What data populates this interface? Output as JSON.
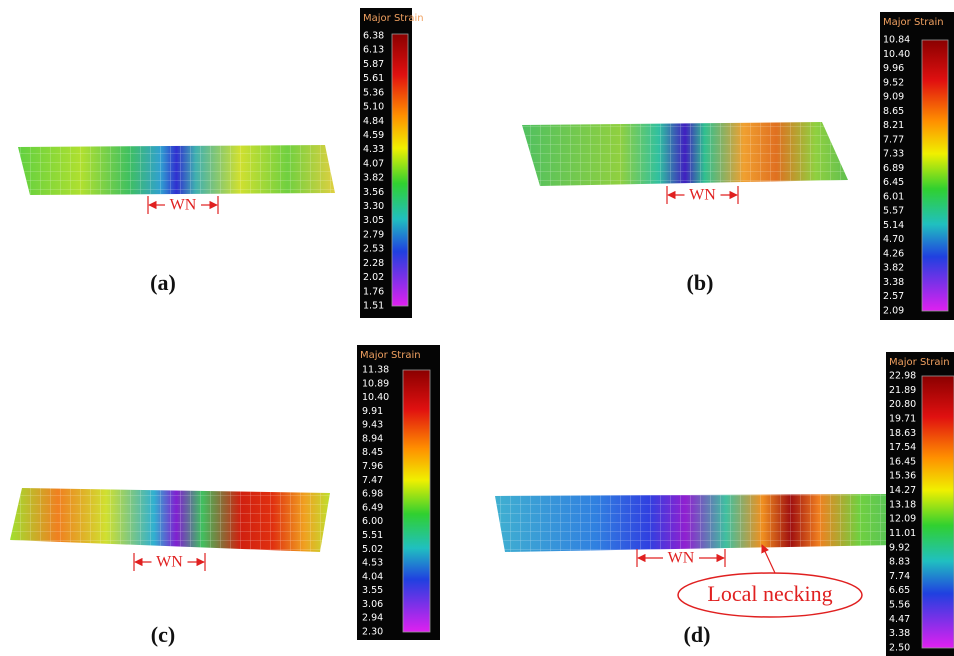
{
  "panels": [
    {
      "label": "(a)",
      "width_label": "WN",
      "colorbar": {
        "title": "Major Strain",
        "ticks": [
          "6.38",
          "6.13",
          "5.87",
          "5.61",
          "5.36",
          "5.10",
          "4.84",
          "4.59",
          "4.33",
          "4.07",
          "3.82",
          "3.56",
          "3.30",
          "3.05",
          "2.79",
          "2.53",
          "2.28",
          "2.02",
          "1.76",
          "1.51"
        ]
      }
    },
    {
      "label": "(b)",
      "width_label": "WN",
      "colorbar": {
        "title": "Major Strain",
        "ticks": [
          "10.84",
          "10.40",
          "9.96",
          "9.52",
          "9.09",
          "8.65",
          "8.21",
          "7.77",
          "7.33",
          "6.89",
          "6.45",
          "6.01",
          "5.57",
          "5.14",
          "4.70",
          "4.26",
          "3.82",
          "3.38",
          "2.57",
          "2.09"
        ]
      }
    },
    {
      "label": "(c)",
      "width_label": "WN",
      "colorbar": {
        "title": "Major Strain",
        "ticks": [
          "11.38",
          "10.89",
          "10.40",
          "9.91",
          "9.43",
          "8.94",
          "8.45",
          "7.96",
          "7.47",
          "6.98",
          "6.49",
          "6.00",
          "5.51",
          "5.02",
          "4.53",
          "4.04",
          "3.55",
          "3.06",
          "2.94",
          "2.30"
        ]
      }
    },
    {
      "label": "(d)",
      "width_label": "WN",
      "colorbar": {
        "title": "Major Strain",
        "ticks": [
          "22.98",
          "21.89",
          "20.80",
          "19.71",
          "18.63",
          "17.54",
          "16.45",
          "15.36",
          "14.27",
          "13.18",
          "12.09",
          "11.01",
          "9.92",
          "8.83",
          "7.74",
          "6.65",
          "5.56",
          "4.47",
          "3.38",
          "2.50"
        ]
      }
    }
  ],
  "annotation": "Local necking"
}
